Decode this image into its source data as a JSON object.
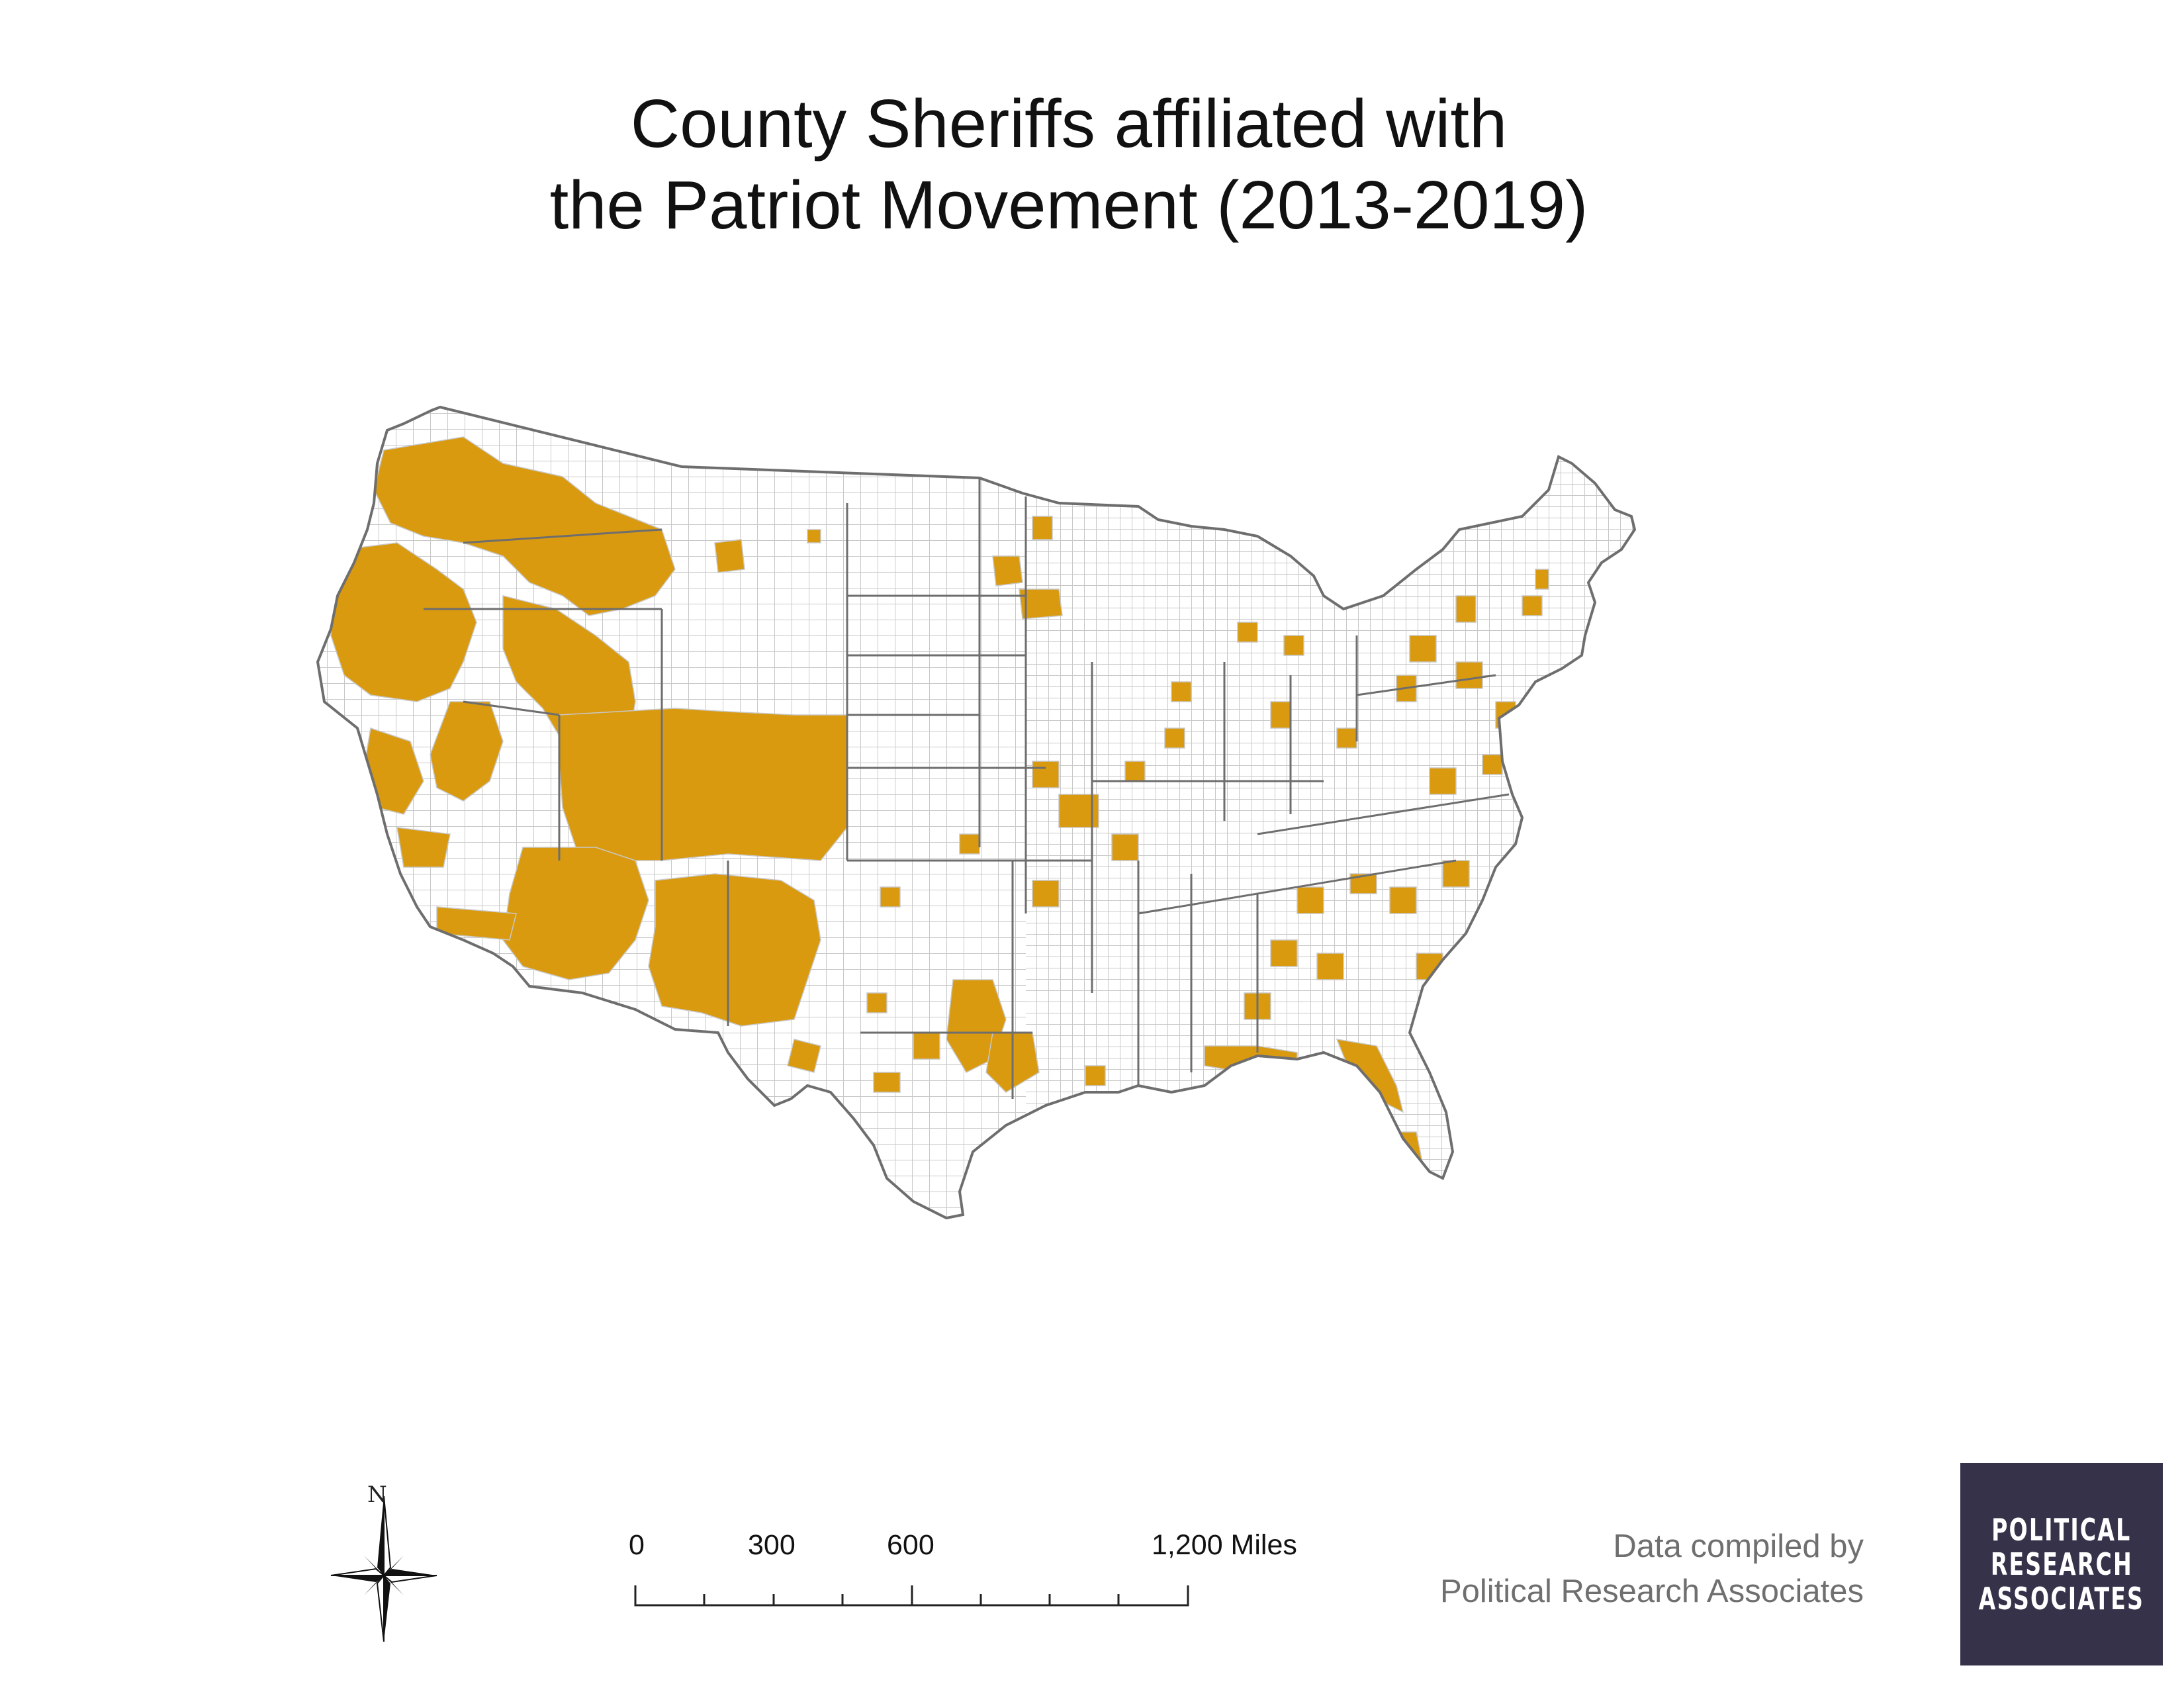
{
  "title": {
    "line1": "County Sheriffs affiliated with",
    "line2": "the Patriot Movement (2013-2019)"
  },
  "map": {
    "region": "Contiguous United States, county boundaries",
    "colors": {
      "affiliated_fill": "#d99a0f",
      "county_fill": "#ffffff",
      "county_border": "#c8c8c8",
      "state_border": "#6e6e6e"
    }
  },
  "compass": {
    "north_label": "N",
    "icon": "north-arrow-icon"
  },
  "scale_bar": {
    "labels": [
      "0",
      "300",
      "600",
      "1,200 Miles"
    ]
  },
  "credit": {
    "line1": "Data compiled by",
    "line2": "Political Research Associates"
  },
  "logo": {
    "line1": "POLITICAL",
    "line2": "RESEARCH",
    "line3": "ASSOCIATES",
    "background": "#35324a"
  }
}
